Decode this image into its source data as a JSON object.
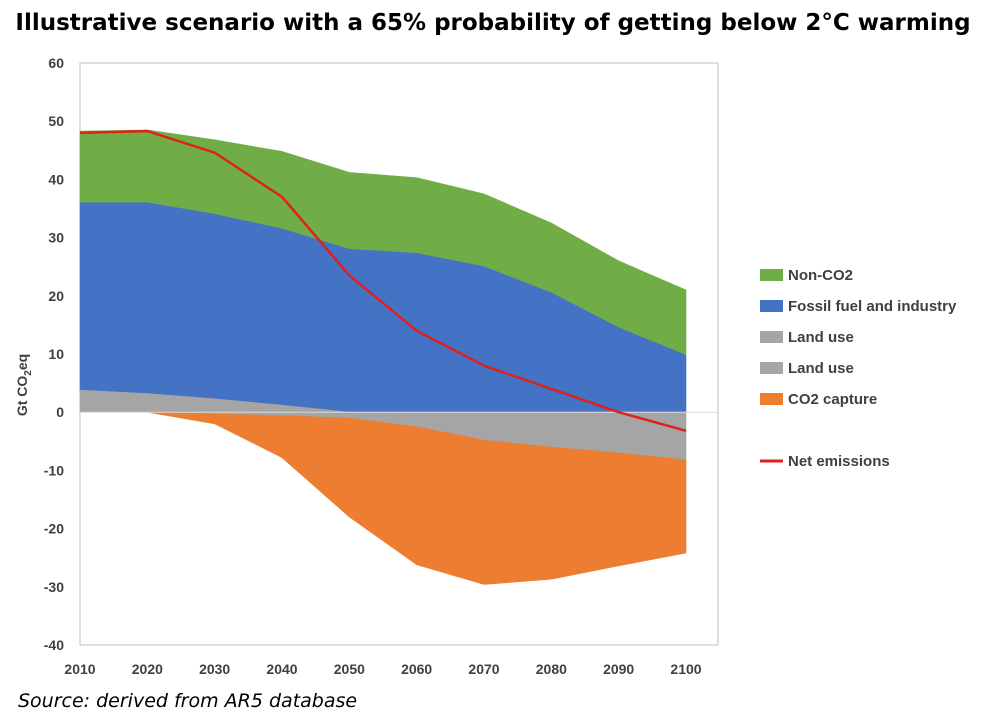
{
  "chart_data": {
    "type": "area",
    "title": "Illustrative scenario with a 65% probability of getting below 2°C warming",
    "source": "Source: derived from AR5 database",
    "ylabel": {
      "main": "Gt CO",
      "sub": "2",
      "tail": "eq"
    },
    "xlabel": "",
    "x": [
      2010,
      2020,
      2030,
      2040,
      2050,
      2060,
      2070,
      2080,
      2090,
      2100
    ],
    "xlim": [
      2010,
      2100
    ],
    "ylim": [
      -40,
      60
    ],
    "yticks": [
      -40,
      -30,
      -20,
      -10,
      0,
      10,
      20,
      30,
      40,
      50,
      60
    ],
    "grid": false,
    "legend_position": "right",
    "series": [
      {
        "name": "Non-CO2",
        "kind": "area",
        "color": "#70AD47",
        "lower": [
          36,
          36,
          34,
          31.5,
          28,
          27.3,
          25,
          20.5,
          14.5,
          9.8
        ],
        "upper": [
          48.3,
          48.5,
          46.8,
          44.8,
          41.2,
          40.3,
          37.5,
          32.5,
          26,
          21
        ]
      },
      {
        "name": "Fossil fuel and industry",
        "kind": "area",
        "color": "#4472C4",
        "lower": [
          3.8,
          3.2,
          2.3,
          1.2,
          0,
          0,
          0,
          0,
          0,
          0
        ],
        "upper": [
          36,
          36,
          34,
          31.5,
          28,
          27.3,
          25,
          20.5,
          14.5,
          9.8
        ]
      },
      {
        "name": "Land use",
        "kind": "area",
        "color": "#A5A5A5",
        "lower": [
          0,
          0,
          0,
          0,
          0,
          0,
          0,
          0,
          0,
          0
        ],
        "upper": [
          3.8,
          3.2,
          2.3,
          1.2,
          0,
          0,
          0,
          0,
          0,
          0
        ]
      },
      {
        "name": "Land use",
        "kind": "area",
        "color": "#A5A5A5",
        "lower": [
          0,
          0,
          -0.3,
          -0.6,
          -1,
          -2.5,
          -4.8,
          -6,
          -7,
          -8.2
        ],
        "upper": [
          0,
          0,
          0,
          0,
          0,
          0,
          0,
          0,
          0,
          0
        ]
      },
      {
        "name": "CO2 capture",
        "kind": "area",
        "color": "#ED7D31",
        "lower": [
          0,
          0,
          -2,
          -7.8,
          -18,
          -26.2,
          -29.6,
          -28.7,
          -26.4,
          -24.2
        ],
        "upper": [
          0,
          0,
          -0.3,
          -0.6,
          -1,
          -2.5,
          -4.8,
          -6,
          -7,
          -8.2
        ]
      },
      {
        "name": "Net emissions",
        "kind": "line",
        "color": "#E0201E",
        "values": [
          48,
          48.3,
          44.6,
          37,
          23.5,
          14,
          8,
          4,
          0,
          -3.2
        ]
      }
    ]
  }
}
